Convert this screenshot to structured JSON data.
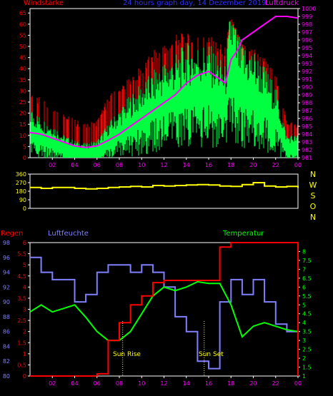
{
  "title": "24 hours graph day, 14 Dezember 2019",
  "colors": {
    "wind_avg": "#00ff40",
    "wind_gust": "#ff0000",
    "pressure": "#ff00ff",
    "direction": "#ffff00",
    "rain": "#ff0000",
    "humidity": "#8080ff",
    "temperature": "#00ff00",
    "frame": "#ffffff",
    "background": "#000000"
  },
  "x_ticks": [
    "02",
    "04",
    "06",
    "08",
    "10",
    "12",
    "14",
    "16",
    "18",
    "20",
    "22",
    "00"
  ],
  "chart_data": [
    {
      "type": "line",
      "name": "wind-pressure",
      "xlabel": "",
      "left_label": "Windstärke",
      "right_label": "Luftdruck",
      "ylim_left": [
        0,
        67
      ],
      "ylim_right": [
        981,
        1000
      ],
      "left_ticks": [
        0,
        5,
        10,
        15,
        20,
        25,
        30,
        35,
        40,
        45,
        50,
        55,
        60,
        65
      ],
      "right_ticks": [
        981,
        982,
        983,
        984,
        985,
        986,
        987,
        988,
        989,
        990,
        991,
        992,
        993,
        994,
        995,
        996,
        997,
        998,
        999,
        1000
      ],
      "x": [
        0,
        1,
        2,
        3,
        4,
        5,
        6,
        7,
        8,
        9,
        10,
        11,
        12,
        13,
        14,
        15,
        16,
        17,
        17.5,
        18,
        18.5,
        19,
        20,
        21,
        22,
        23,
        24
      ],
      "series": [
        {
          "role": "wind_avg",
          "values": [
            18,
            14,
            12,
            8,
            6,
            5,
            6,
            12,
            17,
            22,
            26,
            30,
            34,
            36,
            40,
            40,
            40,
            35,
            32,
            55,
            45,
            40,
            38,
            32,
            25,
            8,
            8
          ]
        },
        {
          "role": "wind_gust",
          "values": [
            30,
            28,
            25,
            20,
            18,
            15,
            18,
            28,
            33,
            36,
            42,
            48,
            52,
            56,
            56,
            56,
            55,
            52,
            50,
            66,
            58,
            52,
            50,
            45,
            38,
            18,
            15
          ]
        },
        {
          "role": "pressure",
          "values": [
            984.2,
            984.0,
            983.5,
            983.0,
            982.5,
            982.3,
            982.5,
            983.2,
            984.0,
            985.0,
            986.0,
            987.0,
            988.0,
            989.0,
            990.5,
            991.5,
            992.0,
            991.0,
            990.5,
            993.5,
            994.5,
            996.0,
            997.0,
            998.0,
            999.0,
            999.0,
            998.8
          ]
        }
      ]
    },
    {
      "type": "line",
      "name": "direction",
      "ylim": [
        0,
        360
      ],
      "left_ticks": [
        0,
        90,
        180,
        270,
        360
      ],
      "right_labels": [
        "N",
        "W",
        "S",
        "O",
        "N"
      ],
      "x": [
        0,
        1,
        2,
        3,
        4,
        5,
        6,
        7,
        8,
        9,
        10,
        11,
        12,
        13,
        14,
        15,
        16,
        17,
        18,
        19,
        20,
        21,
        22,
        23,
        24
      ],
      "values": [
        220,
        210,
        220,
        220,
        210,
        205,
        210,
        220,
        225,
        230,
        225,
        240,
        235,
        240,
        245,
        250,
        245,
        235,
        230,
        250,
        270,
        235,
        225,
        230,
        215
      ]
    },
    {
      "type": "line",
      "name": "rain-humidity-temperature",
      "left_label": "Regen",
      "humidity_label": "Luftfeuchte",
      "right_label": "Temperatur",
      "ylim_rain": [
        0,
        6
      ],
      "rain_ticks": [
        0,
        0.5,
        1,
        1.5,
        2,
        2.5,
        3,
        3.5,
        4,
        4.5,
        5,
        5.5,
        6
      ],
      "ylim_humidity": [
        80,
        98
      ],
      "humidity_ticks": [
        80,
        82,
        84,
        86,
        88,
        90,
        92,
        94,
        96,
        98
      ],
      "ylim_temperature": [
        1,
        8.5
      ],
      "temperature_ticks": [
        1,
        1.5,
        2,
        2.5,
        3,
        3.5,
        4,
        4.5,
        5,
        5.5,
        6,
        6.5,
        7,
        7.5,
        8
      ],
      "annotations": [
        "Sun Rise",
        "Sun Set"
      ],
      "x": [
        0,
        1,
        2,
        3,
        4,
        5,
        6,
        7,
        8,
        9,
        10,
        11,
        12,
        13,
        14,
        15,
        16,
        17,
        18,
        19,
        20,
        21,
        22,
        23,
        24
      ],
      "rain": [
        0,
        0,
        0,
        0,
        0,
        0,
        0.1,
        1.6,
        2.4,
        3.2,
        3.6,
        4.2,
        4.3,
        4.3,
        4.3,
        4.3,
        4.3,
        5.8,
        6.0,
        6.0,
        6.0,
        6.0,
        6.0,
        6.0,
        0
      ],
      "humidity": [
        96,
        94,
        93,
        93,
        90,
        91,
        94,
        95,
        95,
        94,
        95,
        94,
        92,
        88,
        86,
        82,
        81,
        90,
        93,
        91,
        93,
        90,
        87,
        86,
        90
      ],
      "temperature": [
        4.6,
        5.0,
        4.6,
        4.8,
        5.0,
        4.3,
        3.5,
        3.0,
        3.0,
        3.5,
        4.5,
        5.5,
        6.0,
        5.8,
        6.0,
        6.3,
        6.2,
        6.2,
        5.0,
        3.2,
        3.8,
        4.0,
        3.8,
        3.6,
        3.5
      ]
    }
  ]
}
